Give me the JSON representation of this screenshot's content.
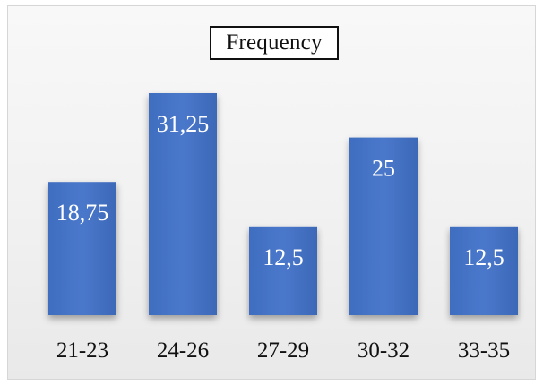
{
  "chart_data": {
    "type": "bar",
    "title": "Frequency",
    "categories": [
      "21-23",
      "24-26",
      "27-29",
      "30-32",
      "33-35"
    ],
    "values": [
      18.75,
      31.25,
      12.5,
      25,
      12.5
    ],
    "value_labels": [
      "18,75",
      "31,25",
      "12,5",
      "25",
      "12,5"
    ],
    "xlabel": "",
    "ylabel": "",
    "ylim": [
      0,
      31.25
    ],
    "grid": false,
    "legend": "none",
    "colors": {
      "bar": "#4472c4",
      "bar_dark": "#3a63ad",
      "label": "#ffffff"
    }
  }
}
